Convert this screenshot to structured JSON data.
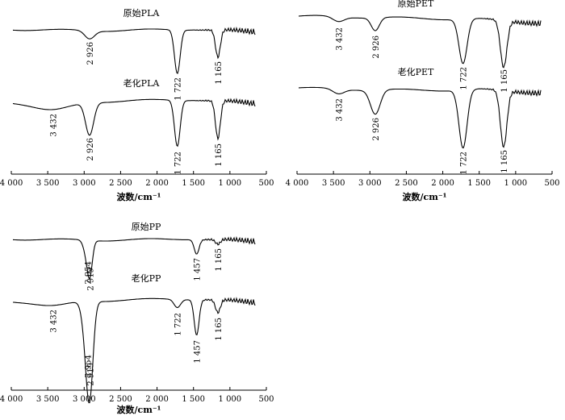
{
  "chart_data": [
    {
      "type": "line",
      "x_unit_label": "波数/cm⁻¹",
      "xlim": [
        4000,
        500
      ],
      "x_reversed": true,
      "x_ticks": [
        {
          "value": 4000,
          "label": "4 000"
        },
        {
          "value": 3500,
          "label": "3 500"
        },
        {
          "value": 3000,
          "label": "3 000"
        },
        {
          "value": 2500,
          "label": "2 500"
        },
        {
          "value": 2000,
          "label": "2 000"
        },
        {
          "value": 1500,
          "label": "1 500"
        },
        {
          "value": 1000,
          "label": "1 000"
        },
        {
          "value": 500,
          "label": "500"
        }
      ],
      "series": [
        {
          "name": "原始PLA",
          "peaks": [
            {
              "x": 2926,
              "label": "2 926"
            },
            {
              "x": 1722,
              "label": "1 722"
            },
            {
              "x": 1165,
              "label": "1 165"
            }
          ]
        },
        {
          "name": "老化PLA",
          "peaks": [
            {
              "x": 3432,
              "label": "3 432"
            },
            {
              "x": 2926,
              "label": "2 926"
            },
            {
              "x": 1722,
              "label": "1 722"
            },
            {
              "x": 1165,
              "label": "1 165"
            }
          ]
        }
      ]
    },
    {
      "type": "line",
      "x_unit_label": "波数/cm⁻¹",
      "xlim": [
        4000,
        500
      ],
      "x_reversed": true,
      "x_ticks": [
        {
          "value": 4000,
          "label": "4 000"
        },
        {
          "value": 3500,
          "label": "3 500"
        },
        {
          "value": 3000,
          "label": "3 000"
        },
        {
          "value": 2500,
          "label": "2 500"
        },
        {
          "value": 2000,
          "label": "2 000"
        },
        {
          "value": 1500,
          "label": "1 500"
        },
        {
          "value": 1000,
          "label": "1 000"
        },
        {
          "value": 500,
          "label": "500"
        }
      ],
      "series": [
        {
          "name": "原始PET",
          "peaks": [
            {
              "x": 3432,
              "label": "3 432"
            },
            {
              "x": 2926,
              "label": "2 926"
            },
            {
              "x": 1722,
              "label": "1 722"
            },
            {
              "x": 1165,
              "label": "1 165"
            }
          ]
        },
        {
          "name": "老化PET",
          "peaks": [
            {
              "x": 3432,
              "label": "3 432"
            },
            {
              "x": 2926,
              "label": "2 926"
            },
            {
              "x": 1722,
              "label": "1 722"
            },
            {
              "x": 1165,
              "label": "1 165"
            }
          ]
        }
      ]
    },
    {
      "type": "line",
      "x_unit_label": "波数/cm⁻¹",
      "xlim": [
        4000,
        500
      ],
      "x_reversed": true,
      "x_ticks": [
        {
          "value": 4000,
          "label": "4 000"
        },
        {
          "value": 3500,
          "label": "3 500"
        },
        {
          "value": 3000,
          "label": "3 000"
        },
        {
          "value": 2500,
          "label": "2 500"
        },
        {
          "value": 2000,
          "label": "2 000"
        },
        {
          "value": 1500,
          "label": "1 500"
        },
        {
          "value": 1000,
          "label": "1 000"
        },
        {
          "value": 500,
          "label": "500"
        }
      ],
      "series": [
        {
          "name": "原始PP",
          "peaks": [
            {
              "x": 2954,
              "label": "2 954"
            },
            {
              "x": 2919,
              "label": "2 919"
            },
            {
              "x": 1457,
              "label": "1 457"
            },
            {
              "x": 1165,
              "label": "1 165"
            }
          ]
        },
        {
          "name": "老化PP",
          "peaks": [
            {
              "x": 3432,
              "label": "3 432"
            },
            {
              "x": 2954,
              "label": "2 954"
            },
            {
              "x": 2919,
              "label": "2 919"
            },
            {
              "x": 1722,
              "label": "1 722"
            },
            {
              "x": 1457,
              "label": "1 457"
            },
            {
              "x": 1165,
              "label": "1 165"
            }
          ]
        }
      ]
    }
  ]
}
